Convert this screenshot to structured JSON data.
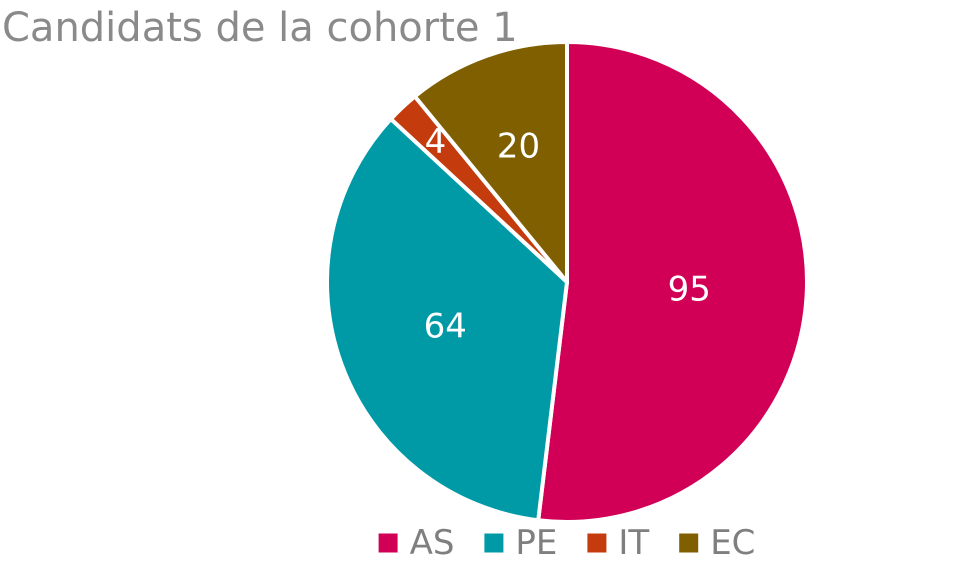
{
  "chart_data": {
    "type": "pie",
    "title": "Candidats de la cohorte 1",
    "categories": [
      "AS",
      "PE",
      "IT",
      "EC"
    ],
    "values": [
      95,
      64,
      4,
      20
    ],
    "colors": [
      "#d10056",
      "#009aa6",
      "#c43b0d",
      "#7f5f00"
    ],
    "data_labels": [
      "95",
      "64",
      "4",
      "20"
    ],
    "start_angle_deg": 0,
    "direction": "clockwise",
    "legend": "bottom",
    "legend_entries": [
      "AS",
      "PE",
      "IT",
      "EC"
    ]
  }
}
